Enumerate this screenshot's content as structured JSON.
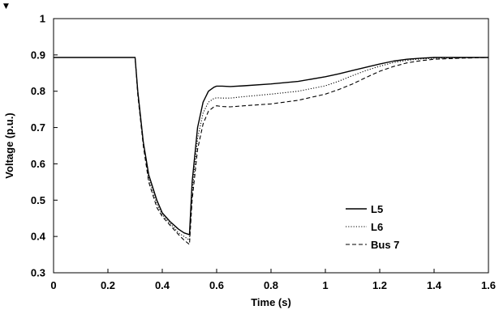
{
  "corner_mark": "▼",
  "chart_data": {
    "type": "line",
    "title": "",
    "xlabel": "Time (s)",
    "ylabel": "Voltage (p.u.)",
    "xlim": [
      0,
      1.6
    ],
    "ylim": [
      0.3,
      1.0
    ],
    "x_ticks": [
      0,
      0.2,
      0.4,
      0.6,
      0.8,
      1,
      1.2,
      1.4,
      1.6
    ],
    "x_tick_labels": [
      "0",
      "0.2",
      "0.4",
      "0.6",
      "0.8",
      "1",
      "1.2",
      "1.4",
      "1.6"
    ],
    "y_ticks": [
      0.3,
      0.4,
      0.5,
      0.6,
      0.7,
      0.8,
      0.9,
      1.0
    ],
    "y_tick_labels": [
      "0.3",
      "0.4",
      "0.5",
      "0.6",
      "0.7",
      "0.8",
      "0.9",
      "1"
    ],
    "grid": false,
    "legend_position": "bottom-right",
    "series": [
      {
        "name": "L5",
        "style": "solid",
        "color": "#000000",
        "x": [
          0,
          0.29,
          0.3,
          0.31,
          0.33,
          0.35,
          0.38,
          0.4,
          0.43,
          0.46,
          0.48,
          0.5,
          0.51,
          0.53,
          0.55,
          0.57,
          0.59,
          0.6,
          0.62,
          0.65,
          0.7,
          0.8,
          0.9,
          1.0,
          1.05,
          1.1,
          1.15,
          1.2,
          1.25,
          1.3,
          1.35,
          1.4,
          1.5,
          1.6
        ],
        "y": [
          0.893,
          0.893,
          0.893,
          0.8,
          0.66,
          0.57,
          0.5,
          0.465,
          0.44,
          0.42,
          0.41,
          0.405,
          0.55,
          0.7,
          0.77,
          0.8,
          0.811,
          0.814,
          0.814,
          0.813,
          0.815,
          0.82,
          0.827,
          0.84,
          0.848,
          0.857,
          0.866,
          0.875,
          0.883,
          0.888,
          0.891,
          0.893,
          0.893,
          0.893
        ]
      },
      {
        "name": "L6",
        "style": "dotted",
        "color": "#000000",
        "x": [
          0,
          0.29,
          0.3,
          0.31,
          0.33,
          0.35,
          0.38,
          0.4,
          0.43,
          0.46,
          0.48,
          0.5,
          0.51,
          0.53,
          0.55,
          0.57,
          0.59,
          0.6,
          0.62,
          0.65,
          0.7,
          0.8,
          0.9,
          1.0,
          1.05,
          1.1,
          1.15,
          1.2,
          1.25,
          1.3,
          1.35,
          1.4,
          1.5,
          1.6
        ],
        "y": [
          0.893,
          0.893,
          0.893,
          0.8,
          0.66,
          0.56,
          0.49,
          0.46,
          0.435,
          0.41,
          0.4,
          0.39,
          0.52,
          0.67,
          0.74,
          0.77,
          0.78,
          0.782,
          0.781,
          0.781,
          0.785,
          0.792,
          0.8,
          0.815,
          0.828,
          0.843,
          0.857,
          0.869,
          0.879,
          0.885,
          0.889,
          0.891,
          0.892,
          0.893
        ]
      },
      {
        "name": "Bus 7",
        "style": "dashed",
        "color": "#000000",
        "x": [
          0,
          0.29,
          0.3,
          0.31,
          0.33,
          0.35,
          0.38,
          0.4,
          0.43,
          0.46,
          0.48,
          0.5,
          0.51,
          0.53,
          0.55,
          0.57,
          0.59,
          0.6,
          0.62,
          0.65,
          0.7,
          0.8,
          0.9,
          1.0,
          1.05,
          1.1,
          1.15,
          1.2,
          1.25,
          1.3,
          1.35,
          1.4,
          1.5,
          1.6
        ],
        "y": [
          0.893,
          0.893,
          0.893,
          0.79,
          0.65,
          0.55,
          0.48,
          0.455,
          0.43,
          0.405,
          0.39,
          0.378,
          0.5,
          0.64,
          0.71,
          0.745,
          0.757,
          0.76,
          0.758,
          0.757,
          0.76,
          0.765,
          0.775,
          0.792,
          0.805,
          0.82,
          0.838,
          0.855,
          0.868,
          0.878,
          0.884,
          0.888,
          0.891,
          0.893
        ]
      }
    ]
  }
}
